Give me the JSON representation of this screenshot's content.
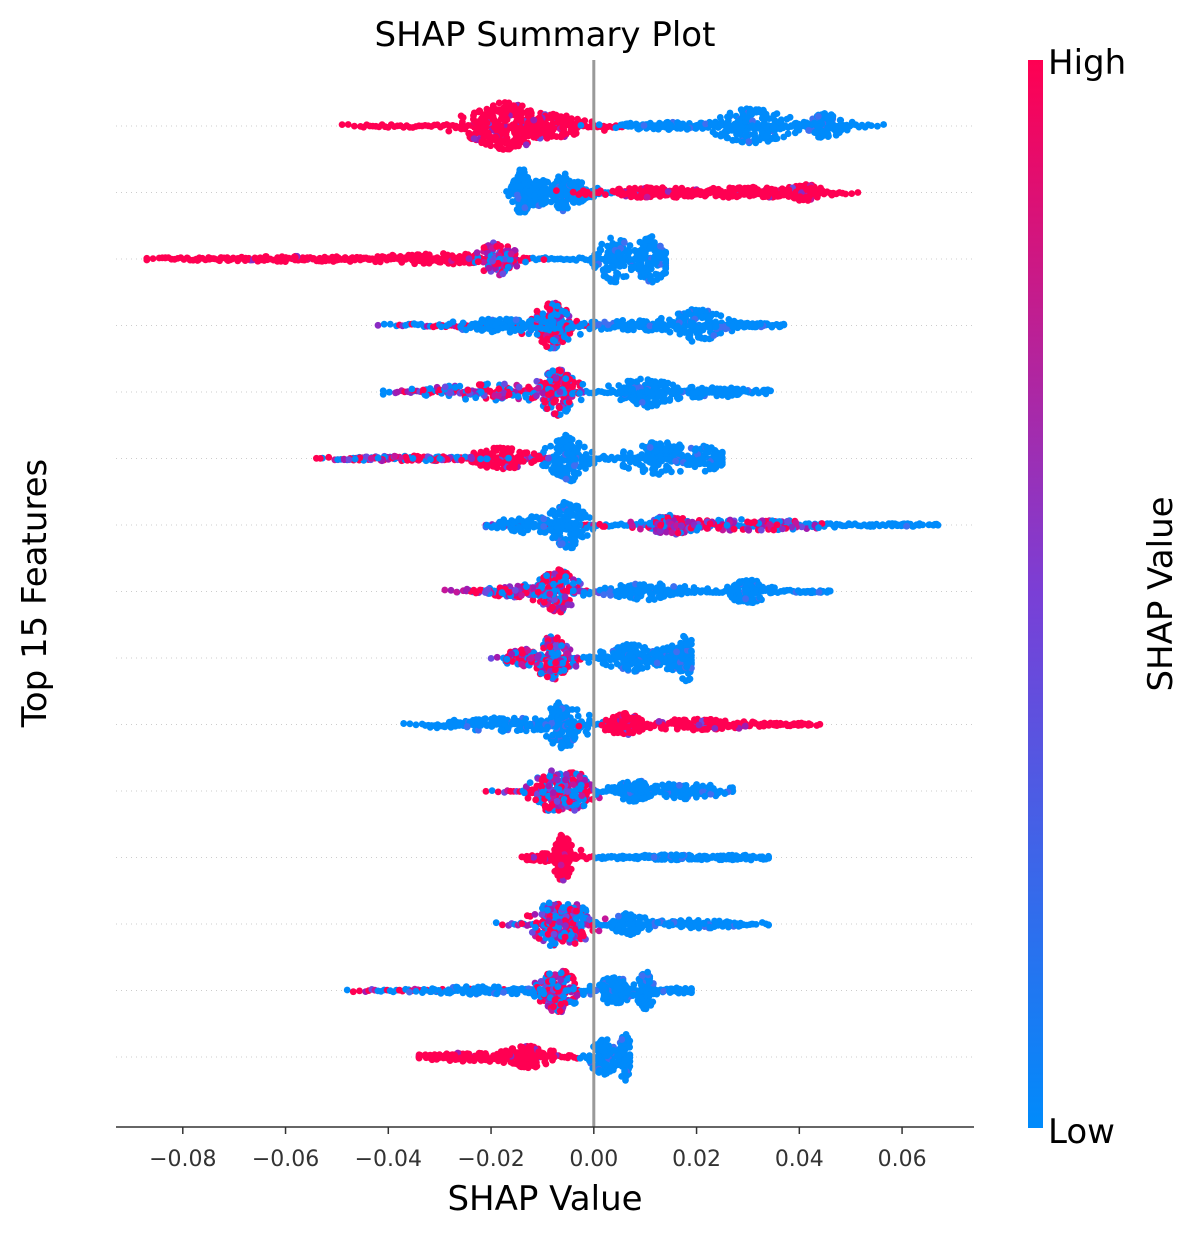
{
  "chart_data": {
    "type": "scatter",
    "subtype": "shap-beeswarm",
    "title": "SHAP Summary Plot",
    "xlabel": "SHAP Value",
    "ylabel": "Top 15 Features",
    "xlim": [
      -0.093,
      0.074
    ],
    "xticks": [
      -0.08,
      -0.06,
      -0.04,
      -0.02,
      0.0,
      0.02,
      0.04,
      0.06
    ],
    "xtick_labels": [
      "−0.08",
      "−0.06",
      "−0.04",
      "−0.02",
      "0.00",
      "0.02",
      "0.04",
      "0.06"
    ],
    "zero_line": 0.0,
    "row_gridlines": true,
    "colorbar": {
      "label": "SHAP Value",
      "high_label": "High",
      "low_label": "Low",
      "high_color": "#ff0052",
      "low_color": "#008bfb"
    },
    "features": [
      {
        "rank": 1,
        "min": -0.049,
        "max": 0.057,
        "clusters": [
          {
            "center": -0.017,
            "spread": 0.004,
            "height": 0.85,
            "color": "high",
            "weight": 3
          },
          {
            "center": -0.009,
            "spread": 0.004,
            "height": 0.45,
            "color": "high",
            "weight": 1.5
          },
          {
            "center": 0.031,
            "spread": 0.004,
            "height": 0.65,
            "color": "low",
            "weight": 2
          },
          {
            "center": 0.045,
            "spread": 0.002,
            "height": 0.45,
            "color": "low",
            "weight": 1
          },
          {
            "center": 0.015,
            "spread": 0.006,
            "height": 0.15,
            "color": "low",
            "weight": 1
          }
        ],
        "split": 0.006
      },
      {
        "rank": 2,
        "min": -0.017,
        "max": 0.052,
        "clusters": [
          {
            "center": -0.014,
            "spread": 0.001,
            "height": 0.85,
            "color": "low",
            "weight": 1.2
          },
          {
            "center": -0.011,
            "spread": 0.002,
            "height": 0.5,
            "color": "low",
            "weight": 1
          },
          {
            "center": -0.006,
            "spread": 0.001,
            "height": 0.7,
            "color": "low",
            "weight": 1
          },
          {
            "center": -0.003,
            "spread": 0.0015,
            "height": 0.4,
            "color": "low",
            "weight": 0.8
          },
          {
            "center": 0.012,
            "spread": 0.006,
            "height": 0.2,
            "color": "high",
            "weight": 1.5
          },
          {
            "center": 0.03,
            "spread": 0.006,
            "height": 0.2,
            "color": "high",
            "weight": 1.5
          },
          {
            "center": 0.041,
            "spread": 0.002,
            "height": 0.3,
            "color": "high",
            "weight": 1
          }
        ],
        "split": 0.005
      },
      {
        "rank": 3,
        "min": -0.087,
        "max": 0.014,
        "clusters": [
          {
            "center": -0.058,
            "spread": 0.012,
            "height": 0.1,
            "color": "high",
            "weight": 1
          },
          {
            "center": -0.03,
            "spread": 0.008,
            "height": 0.2,
            "color": "high",
            "weight": 1.2
          },
          {
            "center": -0.019,
            "spread": 0.002,
            "height": 0.6,
            "color": "mid",
            "weight": 1.2
          },
          {
            "center": 0.004,
            "spread": 0.002,
            "height": 0.85,
            "color": "low",
            "weight": 1
          },
          {
            "center": 0.011,
            "spread": 0.002,
            "height": 0.85,
            "color": "low",
            "weight": 1.2
          }
        ],
        "split": -0.012
      },
      {
        "rank": 4,
        "min": -0.042,
        "max": 0.037,
        "clusters": [
          {
            "center": -0.008,
            "spread": 0.002,
            "height": 0.85,
            "color": "mix",
            "weight": 1.5
          },
          {
            "center": -0.018,
            "spread": 0.006,
            "height": 0.25,
            "color": "low",
            "weight": 1
          },
          {
            "center": 0.02,
            "spread": 0.003,
            "height": 0.6,
            "color": "low",
            "weight": 1.3
          },
          {
            "center": 0.008,
            "spread": 0.006,
            "height": 0.2,
            "color": "low",
            "weight": 1
          },
          {
            "center": 0.03,
            "spread": 0.004,
            "height": 0.1,
            "color": "low",
            "weight": 0.7
          }
        ],
        "split": 0.0
      },
      {
        "rank": 5,
        "min": -0.041,
        "max": 0.035,
        "clusters": [
          {
            "center": -0.007,
            "spread": 0.002,
            "height": 0.85,
            "color": "mix",
            "weight": 1.5
          },
          {
            "center": -0.02,
            "spread": 0.007,
            "height": 0.3,
            "color": "mix",
            "weight": 1.2
          },
          {
            "center": 0.01,
            "spread": 0.003,
            "height": 0.55,
            "color": "low",
            "weight": 1.3
          },
          {
            "center": 0.022,
            "spread": 0.006,
            "height": 0.2,
            "color": "low",
            "weight": 0.8
          }
        ],
        "split": -0.002
      },
      {
        "rank": 6,
        "min": -0.054,
        "max": 0.025,
        "clusters": [
          {
            "center": -0.005,
            "spread": 0.002,
            "height": 0.85,
            "color": "low",
            "weight": 1.5
          },
          {
            "center": -0.018,
            "spread": 0.003,
            "height": 0.4,
            "color": "high",
            "weight": 1.2
          },
          {
            "center": -0.036,
            "spread": 0.008,
            "height": 0.1,
            "color": "mix",
            "weight": 1
          },
          {
            "center": 0.013,
            "spread": 0.004,
            "height": 0.6,
            "color": "low",
            "weight": 1.3
          },
          {
            "center": 0.022,
            "spread": 0.002,
            "height": 0.5,
            "color": "low",
            "weight": 0.8
          }
        ],
        "split": -0.008
      },
      {
        "rank": 7,
        "min": -0.021,
        "max": 0.067,
        "clusters": [
          {
            "center": -0.005,
            "spread": 0.002,
            "height": 0.85,
            "color": "low",
            "weight": 1.5
          },
          {
            "center": -0.012,
            "spread": 0.004,
            "height": 0.3,
            "color": "low",
            "weight": 1
          },
          {
            "center": 0.015,
            "spread": 0.003,
            "height": 0.35,
            "color": "mid",
            "weight": 1.3
          },
          {
            "center": 0.03,
            "spread": 0.009,
            "height": 0.2,
            "color": "mid",
            "weight": 1.3
          },
          {
            "center": 0.06,
            "spread": 0.004,
            "height": 0.05,
            "color": "low",
            "weight": 0.3
          }
        ],
        "split": 0.002
      },
      {
        "rank": 8,
        "min": -0.029,
        "max": 0.046,
        "clusters": [
          {
            "center": -0.007,
            "spread": 0.002,
            "height": 0.8,
            "color": "mix",
            "weight": 1.5
          },
          {
            "center": -0.016,
            "spread": 0.004,
            "height": 0.2,
            "color": "mix",
            "weight": 1
          },
          {
            "center": 0.01,
            "spread": 0.005,
            "height": 0.3,
            "color": "low",
            "weight": 1.2
          },
          {
            "center": 0.03,
            "spread": 0.002,
            "height": 0.45,
            "color": "low",
            "weight": 1
          },
          {
            "center": 0.043,
            "spread": 0.003,
            "height": 0.05,
            "color": "low",
            "weight": 0.3
          }
        ],
        "split": 0.004
      },
      {
        "rank": 9,
        "min": -0.02,
        "max": 0.019,
        "clusters": [
          {
            "center": -0.008,
            "spread": 0.002,
            "height": 0.8,
            "color": "mix",
            "weight": 1.5
          },
          {
            "center": -0.014,
            "spread": 0.002,
            "height": 0.3,
            "color": "mix",
            "weight": 0.8
          },
          {
            "center": 0.007,
            "spread": 0.003,
            "height": 0.5,
            "color": "low",
            "weight": 1.2
          },
          {
            "center": 0.015,
            "spread": 0.002,
            "height": 0.45,
            "color": "low",
            "weight": 1
          },
          {
            "center": 0.018,
            "spread": 0.001,
            "height": 0.85,
            "color": "low",
            "weight": 0.6
          }
        ],
        "split": -0.002
      },
      {
        "rank": 10,
        "min": -0.037,
        "max": 0.044,
        "clusters": [
          {
            "center": -0.006,
            "spread": 0.002,
            "height": 0.85,
            "color": "low",
            "weight": 1.5
          },
          {
            "center": -0.017,
            "spread": 0.007,
            "height": 0.25,
            "color": "low",
            "weight": 1.2
          },
          {
            "center": 0.006,
            "spread": 0.002,
            "height": 0.4,
            "color": "high",
            "weight": 1.2
          },
          {
            "center": 0.02,
            "spread": 0.007,
            "height": 0.2,
            "color": "high",
            "weight": 1.3
          },
          {
            "center": 0.038,
            "spread": 0.003,
            "height": 0.05,
            "color": "high",
            "weight": 0.3
          }
        ],
        "split": 0.002
      },
      {
        "rank": 11,
        "min": -0.021,
        "max": 0.027,
        "clusters": [
          {
            "center": -0.008,
            "spread": 0.002,
            "height": 0.8,
            "color": "mix",
            "weight": 1.5
          },
          {
            "center": -0.004,
            "spread": 0.002,
            "height": 0.7,
            "color": "mix",
            "weight": 1.2
          },
          {
            "center": 0.008,
            "spread": 0.002,
            "height": 0.4,
            "color": "low",
            "weight": 1.2
          },
          {
            "center": 0.018,
            "spread": 0.004,
            "height": 0.3,
            "color": "low",
            "weight": 1
          }
        ],
        "split": 0.001
      },
      {
        "rank": 12,
        "min": -0.014,
        "max": 0.034,
        "clusters": [
          {
            "center": -0.006,
            "spread": 0.001,
            "height": 0.85,
            "color": "high",
            "weight": 1.2
          },
          {
            "center": -0.01,
            "spread": 0.002,
            "height": 0.15,
            "color": "high",
            "weight": 0.6
          },
          {
            "center": 0.015,
            "spread": 0.006,
            "height": 0.1,
            "color": "low",
            "weight": 1
          },
          {
            "center": 0.028,
            "spread": 0.004,
            "height": 0.1,
            "color": "low",
            "weight": 0.6
          }
        ],
        "split": 0.0
      },
      {
        "rank": 13,
        "min": -0.019,
        "max": 0.034,
        "clusters": [
          {
            "center": -0.008,
            "spread": 0.002,
            "height": 0.8,
            "color": "mix",
            "weight": 1.5
          },
          {
            "center": -0.004,
            "spread": 0.002,
            "height": 0.75,
            "color": "mix",
            "weight": 1.2
          },
          {
            "center": 0.007,
            "spread": 0.002,
            "height": 0.4,
            "color": "low",
            "weight": 1.1
          },
          {
            "center": 0.02,
            "spread": 0.006,
            "height": 0.15,
            "color": "low",
            "weight": 0.9
          }
        ],
        "split": 0.0
      },
      {
        "rank": 14,
        "min": -0.048,
        "max": 0.019,
        "clusters": [
          {
            "center": -0.007,
            "spread": 0.002,
            "height": 0.8,
            "color": "mix",
            "weight": 1.5
          },
          {
            "center": -0.022,
            "spread": 0.007,
            "height": 0.15,
            "color": "low",
            "weight": 1
          },
          {
            "center": 0.004,
            "spread": 0.002,
            "height": 0.5,
            "color": "low",
            "weight": 1.2
          },
          {
            "center": 0.01,
            "spread": 0.001,
            "height": 0.7,
            "color": "low",
            "weight": 0.8
          },
          {
            "center": 0.017,
            "spread": 0.002,
            "height": 0.1,
            "color": "low",
            "weight": 0.3
          }
        ],
        "split": -0.003
      },
      {
        "rank": 15,
        "min": -0.034,
        "max": 0.007,
        "clusters": [
          {
            "center": -0.013,
            "spread": 0.003,
            "height": 0.4,
            "color": "high",
            "weight": 1.5
          },
          {
            "center": -0.025,
            "spread": 0.005,
            "height": 0.15,
            "color": "high",
            "weight": 1
          },
          {
            "center": 0.002,
            "spread": 0.0015,
            "height": 0.65,
            "color": "low",
            "weight": 1
          },
          {
            "center": 0.006,
            "spread": 0.0008,
            "height": 0.85,
            "color": "low",
            "weight": 0.7
          }
        ],
        "split": -0.003
      }
    ]
  }
}
